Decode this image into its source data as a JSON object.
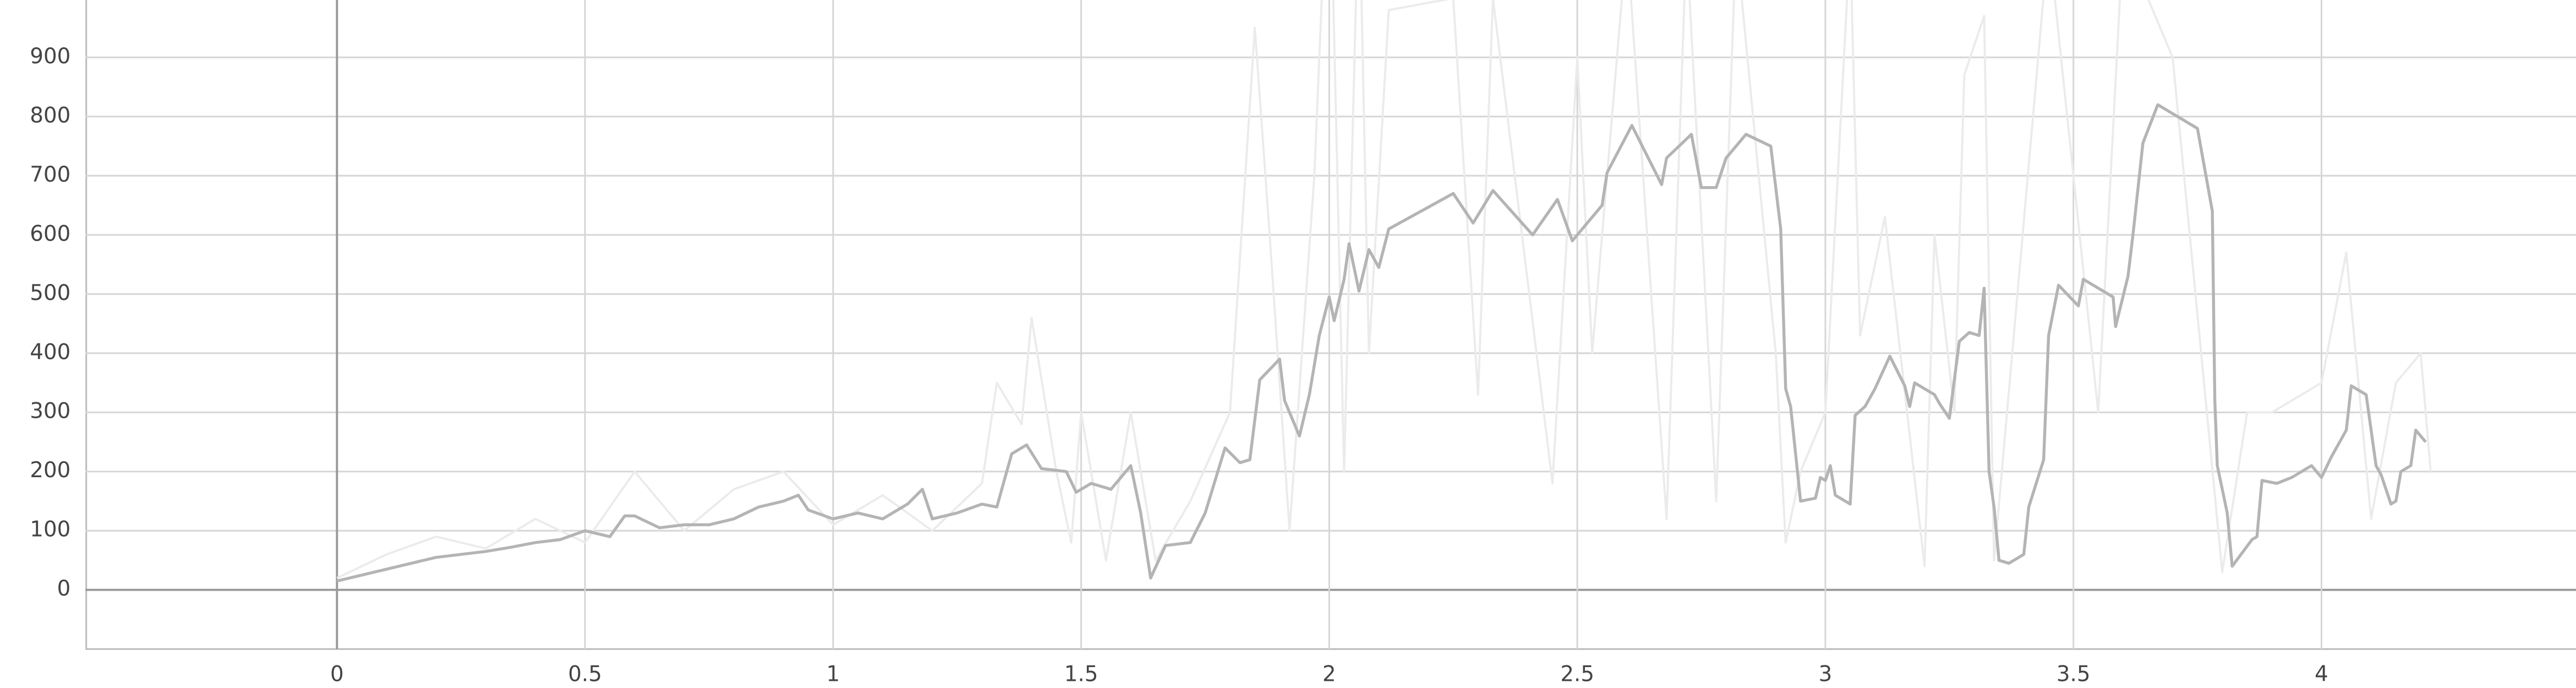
{
  "chart_data": {
    "type": "line",
    "xlim": [
      -0.507,
      4.513
    ],
    "ylim": [
      -100,
      997
    ],
    "xticks": [
      0,
      0.5,
      1,
      1.5,
      2,
      2.5,
      3,
      3.5,
      4
    ],
    "yticks": [
      0,
      100,
      200,
      300,
      400,
      500,
      600,
      700,
      800,
      900
    ],
    "grid": true,
    "series": [
      {
        "color": "#ebebeb",
        "x": [
          0,
          0.1,
          0.2,
          0.3,
          0.4,
          0.5,
          0.6,
          0.7,
          0.8,
          0.9,
          1.0,
          1.1,
          1.2,
          1.3,
          1.33,
          1.38,
          1.4,
          1.45,
          1.48,
          1.5,
          1.55,
          1.6,
          1.65,
          1.72,
          1.8,
          1.85,
          1.88,
          1.92,
          1.97,
          2.0,
          2.03,
          2.06,
          2.08,
          2.12,
          2.25,
          2.3,
          2.33,
          2.45,
          2.5,
          2.53,
          2.6,
          2.68,
          2.72,
          2.78,
          2.82,
          2.9,
          2.92,
          2.95,
          3.0,
          3.05,
          3.07,
          3.12,
          3.2,
          3.22,
          3.26,
          3.28,
          3.32,
          3.34,
          3.45,
          3.55,
          3.6,
          3.7,
          3.8,
          3.85,
          3.9,
          4.0,
          4.05,
          4.1,
          4.15,
          4.2,
          4.22
        ],
        "values": [
          20,
          60,
          90,
          70,
          120,
          80,
          200,
          100,
          170,
          200,
          110,
          160,
          100,
          180,
          350,
          280,
          460,
          200,
          80,
          300,
          50,
          300,
          50,
          150,
          300,
          950,
          600,
          100,
          700,
          1300,
          200,
          1200,
          400,
          980,
          1000,
          330,
          1000,
          180,
          900,
          400,
          1100,
          120,
          1100,
          150,
          1100,
          400,
          80,
          200,
          300,
          1100,
          430,
          630,
          40,
          600,
          300,
          870,
          970,
          50,
          1100,
          300,
          1100,
          900,
          30,
          300,
          300,
          350,
          570,
          120,
          350,
          400,
          200
        ]
      },
      {
        "color": "#b4b4b4",
        "x": [
          0,
          0.05,
          0.1,
          0.15,
          0.2,
          0.25,
          0.3,
          0.35,
          0.4,
          0.45,
          0.5,
          0.55,
          0.58,
          0.6,
          0.65,
          0.7,
          0.75,
          0.8,
          0.85,
          0.9,
          0.93,
          0.95,
          1.0,
          1.05,
          1.1,
          1.15,
          1.18,
          1.2,
          1.25,
          1.3,
          1.33,
          1.36,
          1.39,
          1.42,
          1.47,
          1.49,
          1.52,
          1.56,
          1.6,
          1.62,
          1.64,
          1.67,
          1.72,
          1.75,
          1.79,
          1.82,
          1.84,
          1.86,
          1.9,
          1.91,
          1.94,
          1.96,
          1.98,
          2.0,
          2.01,
          2.03,
          2.04,
          2.06,
          2.08,
          2.1,
          2.12,
          2.25,
          2.29,
          2.33,
          2.41,
          2.46,
          2.49,
          2.55,
          2.56,
          2.61,
          2.67,
          2.68,
          2.73,
          2.75,
          2.78,
          2.8,
          2.84,
          2.89,
          2.91,
          2.92,
          2.93,
          2.95,
          2.98,
          2.99,
          3.0,
          3.01,
          3.02,
          3.05,
          3.06,
          3.08,
          3.1,
          3.13,
          3.16,
          3.17,
          3.18,
          3.22,
          3.23,
          3.25,
          3.27,
          3.29,
          3.31,
          3.32,
          3.33,
          3.34,
          3.35,
          3.37,
          3.4,
          3.41,
          3.44,
          3.45,
          3.47,
          3.51,
          3.52,
          3.58,
          3.585,
          3.61,
          3.62,
          3.64,
          3.67,
          3.75,
          3.78,
          3.785,
          3.79,
          3.81,
          3.82,
          3.86,
          3.87,
          3.88,
          3.91,
          3.94,
          3.98,
          4.0,
          4.02,
          4.05,
          4.06,
          4.09,
          4.1,
          4.11,
          4.12,
          4.14,
          4.15,
          4.16,
          4.18,
          4.19,
          4.21
        ],
        "values": [
          15,
          25,
          35,
          45,
          55,
          60,
          65,
          72,
          80,
          85,
          100,
          90,
          125,
          125,
          105,
          110,
          110,
          120,
          140,
          150,
          160,
          135,
          120,
          130,
          120,
          145,
          170,
          120,
          130,
          145,
          140,
          230,
          245,
          205,
          200,
          165,
          180,
          170,
          210,
          130,
          20,
          75,
          80,
          130,
          240,
          215,
          220,
          355,
          390,
          320,
          260,
          330,
          430,
          495,
          455,
          525,
          585,
          505,
          575,
          545,
          610,
          670,
          620,
          675,
          600,
          660,
          590,
          650,
          705,
          785,
          685,
          730,
          770,
          680,
          680,
          730,
          770,
          750,
          610,
          340,
          310,
          150,
          155,
          190,
          185,
          210,
          160,
          145,
          295,
          310,
          340,
          395,
          345,
          310,
          350,
          330,
          315,
          290,
          420,
          435,
          430,
          510,
          200,
          140,
          50,
          45,
          60,
          140,
          220,
          430,
          515,
          480,
          525,
          495,
          445,
          530,
          600,
          755,
          820,
          780,
          640,
          320,
          210,
          130,
          40,
          85,
          90,
          185,
          180,
          190,
          210,
          190,
          225,
          270,
          345,
          330,
          270,
          210,
          195,
          145,
          150,
          200,
          210,
          270,
          250
        ]
      }
    ]
  }
}
